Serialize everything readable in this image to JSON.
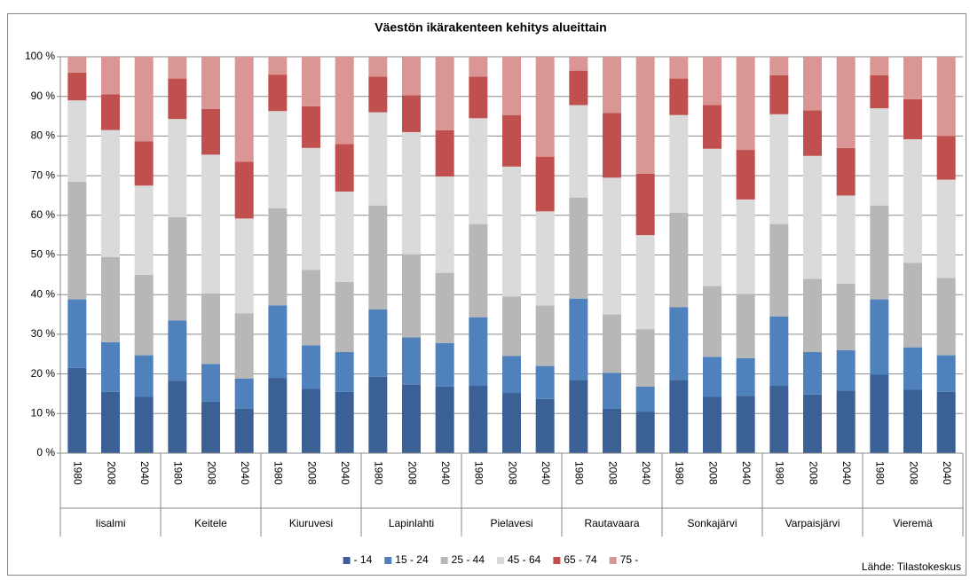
{
  "chart_data": {
    "type": "stacked_bar_percent",
    "title": "Väestön ikärakenteen kehitys alueittain",
    "source": "Lähde: Tilastokeskus",
    "categories": [
      "1980",
      "2008",
      "2040",
      "1980",
      "2008",
      "2040",
      "1980",
      "2008",
      "2040",
      "1980",
      "2008",
      "2040",
      "1980",
      "2008",
      "2040",
      "1980",
      "2008",
      "2040",
      "1980",
      "2008",
      "2040",
      "1980",
      "2008",
      "2040",
      "1980",
      "2008",
      "2040"
    ],
    "groups": [
      "Iisalmi",
      "Keitele",
      "Kiuruvesi",
      "Lapinlahti",
      "Pielavesi",
      "Rautavaara",
      "Sonkajärvi",
      "Varpaisjärvi",
      "Vieremä"
    ],
    "series": [
      {
        "name": "- 14",
        "color": "#3a6095",
        "values": [
          21.5,
          15.5,
          14.2,
          18.3,
          13,
          11.2,
          19,
          16.3,
          15.5,
          19.3,
          17.3,
          16.8,
          17,
          15.2,
          13.7,
          18.5,
          11.2,
          10.5,
          18.5,
          14.2,
          14.5,
          17,
          14.8,
          15.8,
          19.8,
          16,
          15.5
        ]
      },
      {
        "name": "15 - 24",
        "color": "#4f81bd",
        "values": [
          17.3,
          12.5,
          10.5,
          15.2,
          9.5,
          7.6,
          18.3,
          10.9,
          10,
          17,
          11.9,
          11,
          17.3,
          9.3,
          8.3,
          20.5,
          9.1,
          6.3,
          18.3,
          10.1,
          9.5,
          17.5,
          10.7,
          10.2,
          19,
          10.7,
          9.2
        ]
      },
      {
        "name": "25 - 44",
        "color": "#b7b7b7",
        "values": [
          29.7,
          21.5,
          20.3,
          26,
          17.8,
          16.5,
          24.5,
          19,
          17.7,
          26.2,
          21,
          17.7,
          23.5,
          15,
          15.3,
          25.5,
          14.7,
          14.5,
          23.9,
          17.9,
          16.2,
          23.3,
          18.5,
          16.8,
          23.7,
          21.3,
          19.5
        ]
      },
      {
        "name": "45 - 64",
        "color": "#dadada",
        "values": [
          20.5,
          32,
          22.5,
          24.8,
          35,
          23.9,
          24.5,
          30.8,
          22.8,
          23.5,
          30.8,
          24.3,
          26.7,
          32.8,
          23.7,
          23.3,
          34.5,
          23.7,
          24.6,
          34.6,
          23.8,
          27.7,
          31,
          22.2,
          24.5,
          31.2,
          24.8
        ]
      },
      {
        "name": "65 - 74",
        "color": "#c0504d",
        "values": [
          7,
          9,
          11.2,
          10.2,
          11.5,
          14.3,
          9.2,
          10.5,
          12,
          9,
          9.3,
          11.7,
          10.5,
          13,
          13.8,
          8.7,
          16.3,
          15.5,
          9.2,
          11,
          12.5,
          9.8,
          11.5,
          12,
          8.3,
          10.1,
          11
        ]
      },
      {
        "name": "75 -",
        "color": "#d99694",
        "values": [
          4,
          9.5,
          21.3,
          5.5,
          13.2,
          26.5,
          4.5,
          12.5,
          22,
          5,
          9.7,
          18.5,
          5,
          14.7,
          25.2,
          3.5,
          14.2,
          29.5,
          5.5,
          12.2,
          23.5,
          4.7,
          13.5,
          23,
          4.7,
          10.7,
          20
        ]
      }
    ],
    "ylim": [
      0,
      100
    ],
    "yticks": [
      {
        "value": 0,
        "label": "0 %"
      },
      {
        "value": 10,
        "label": "10 %"
      },
      {
        "value": 20,
        "label": "20 %"
      },
      {
        "value": 30,
        "label": "30 %"
      },
      {
        "value": 40,
        "label": "40 %"
      },
      {
        "value": 50,
        "label": "50 %"
      },
      {
        "value": 60,
        "label": "60 %"
      },
      {
        "value": 70,
        "label": "70 %"
      },
      {
        "value": 80,
        "label": "80 %"
      },
      {
        "value": 90,
        "label": "90 %"
      },
      {
        "value": 100,
        "label": "100 %"
      }
    ],
    "grid": true,
    "legend": "bottom"
  }
}
